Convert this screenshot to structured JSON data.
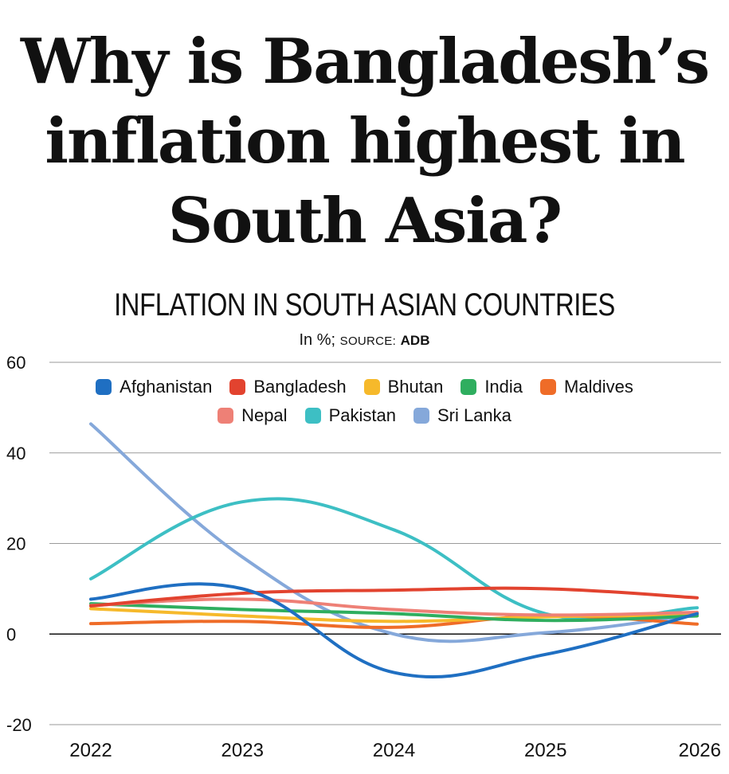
{
  "headline": {
    "line1": "Why is Bangladesh’s",
    "line2": "inflation highest in",
    "line3": "South Asia?"
  },
  "chart_title": "INFLATION IN SOUTH ASIAN COUNTRIES",
  "source": {
    "unit": "In %;",
    "label": "SOURCE:",
    "name": "ADB"
  },
  "chart_data": {
    "type": "line",
    "title": "INFLATION IN SOUTH ASIAN COUNTRIES",
    "xlabel": "",
    "ylabel": "In %",
    "x": [
      2022,
      2023,
      2024,
      2025,
      2026
    ],
    "ylim": [
      -20,
      60
    ],
    "yticks": [
      -20,
      0,
      20,
      40,
      60
    ],
    "grid": true,
    "legend_position": "top",
    "series": [
      {
        "name": "Afghanistan",
        "color": "#1f6fc2",
        "values": [
          7.7,
          10,
          -8.5,
          -4.5,
          4.5
        ]
      },
      {
        "name": "Bangladesh",
        "color": "#e2432f",
        "values": [
          6.2,
          9,
          9.7,
          10,
          8
        ]
      },
      {
        "name": "Bhutan",
        "color": "#f6b92b",
        "values": [
          5.6,
          4,
          2.8,
          3.8,
          4.2
        ]
      },
      {
        "name": "India",
        "color": "#2fae5f",
        "values": [
          6.7,
          5.4,
          4.5,
          3,
          4
        ]
      },
      {
        "name": "Maldives",
        "color": "#ef6c28",
        "values": [
          2.3,
          2.8,
          1.5,
          4,
          2.2
        ]
      },
      {
        "name": "Nepal",
        "color": "#ee8076",
        "values": [
          6.3,
          7.7,
          5.4,
          4.2,
          4.8
        ]
      },
      {
        "name": "Pakistan",
        "color": "#3dbfc4",
        "values": [
          12.2,
          29.2,
          23,
          4.5,
          5.8
        ]
      },
      {
        "name": "Sri Lanka",
        "color": "#85a8da",
        "values": [
          46.4,
          17,
          0,
          0.3,
          4.3
        ]
      }
    ]
  }
}
